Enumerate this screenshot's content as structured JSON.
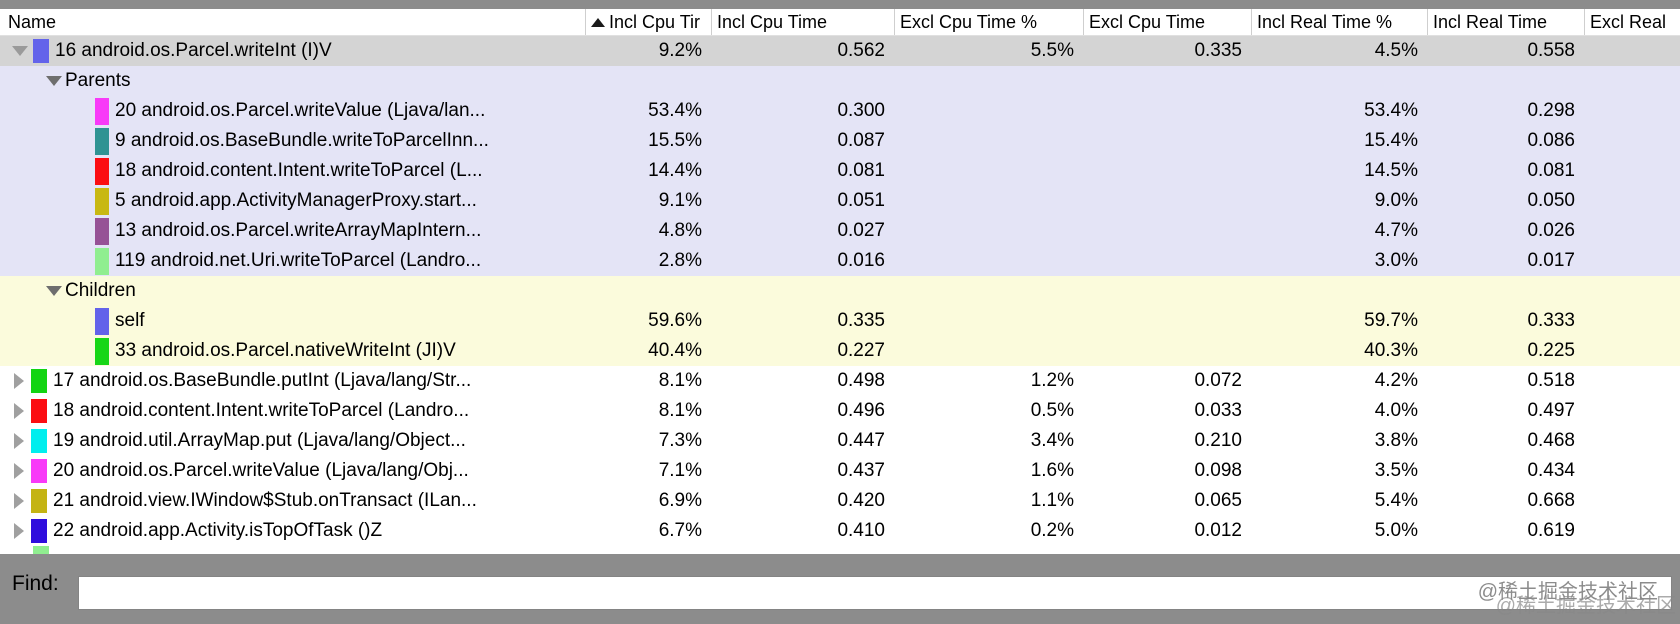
{
  "table": {
    "columns": [
      {
        "label": "Name",
        "sorted": false
      },
      {
        "label": "Incl Cpu Tir",
        "sorted": true
      },
      {
        "label": "Incl Cpu Time",
        "sorted": false
      },
      {
        "label": "Excl Cpu Time %",
        "sorted": false
      },
      {
        "label": "Excl Cpu Time",
        "sorted": false
      },
      {
        "label": "Incl Real Time %",
        "sorted": false
      },
      {
        "label": "Incl Real Time",
        "sorted": false
      },
      {
        "label": "Excl Real",
        "sorted": false
      }
    ],
    "rows": [
      {
        "kind": "root",
        "expanded": true,
        "selected": true,
        "color": "#6363ea",
        "name": "16 android.os.Parcel.writeInt (I)V",
        "values": [
          "9.2%",
          "0.562",
          "5.5%",
          "0.335",
          "4.5%",
          "0.558",
          ""
        ]
      },
      {
        "kind": "section",
        "group": "parents",
        "label": "Parents"
      },
      {
        "kind": "sub",
        "group": "parents",
        "color": "#f83af8",
        "name": "20 android.os.Parcel.writeValue (Ljava/lan...",
        "values": [
          "53.4%",
          "0.300",
          "",
          "",
          "53.4%",
          "0.298",
          ""
        ]
      },
      {
        "kind": "sub",
        "group": "parents",
        "color": "#2f9393",
        "name": "9 android.os.BaseBundle.writeToParcelInn...",
        "values": [
          "15.5%",
          "0.087",
          "",
          "",
          "15.4%",
          "0.086",
          ""
        ]
      },
      {
        "kind": "sub",
        "group": "parents",
        "color": "#fb0d12",
        "name": "18 android.content.Intent.writeToParcel (L...",
        "values": [
          "14.4%",
          "0.081",
          "",
          "",
          "14.5%",
          "0.081",
          ""
        ]
      },
      {
        "kind": "sub",
        "group": "parents",
        "color": "#c8b812",
        "name": "5 android.app.ActivityManagerProxy.start...",
        "values": [
          "9.1%",
          "0.051",
          "",
          "",
          "9.0%",
          "0.050",
          ""
        ]
      },
      {
        "kind": "sub",
        "group": "parents",
        "color": "#965296",
        "name": "13 android.os.Parcel.writeArrayMapIntern...",
        "values": [
          "4.8%",
          "0.027",
          "",
          "",
          "4.7%",
          "0.026",
          ""
        ]
      },
      {
        "kind": "sub",
        "group": "parents",
        "color": "#90ee90",
        "name": "119 android.net.Uri.writeToParcel (Landro...",
        "values": [
          "2.8%",
          "0.016",
          "",
          "",
          "3.0%",
          "0.017",
          ""
        ]
      },
      {
        "kind": "section",
        "group": "children",
        "label": "Children"
      },
      {
        "kind": "sub",
        "group": "children",
        "color": "#6363ea",
        "name": "self",
        "values": [
          "59.6%",
          "0.335",
          "",
          "",
          "59.7%",
          "0.333",
          ""
        ]
      },
      {
        "kind": "sub",
        "group": "children",
        "color": "#17d617",
        "name": "33 android.os.Parcel.nativeWriteInt (JI)V",
        "values": [
          "40.4%",
          "0.227",
          "",
          "",
          "40.3%",
          "0.225",
          ""
        ]
      },
      {
        "kind": "root",
        "expanded": false,
        "selected": false,
        "color": "#12d412",
        "name": "17 android.os.BaseBundle.putInt (Ljava/lang/Str...",
        "values": [
          "8.1%",
          "0.498",
          "1.2%",
          "0.072",
          "4.2%",
          "0.518",
          ""
        ]
      },
      {
        "kind": "root",
        "expanded": false,
        "selected": false,
        "color": "#fb0d12",
        "name": "18 android.content.Intent.writeToParcel (Landro...",
        "values": [
          "8.1%",
          "0.496",
          "0.5%",
          "0.033",
          "4.0%",
          "0.497",
          ""
        ]
      },
      {
        "kind": "root",
        "expanded": false,
        "selected": false,
        "color": "#00eeee",
        "name": "19 android.util.ArrayMap.put (Ljava/lang/Object...",
        "values": [
          "7.3%",
          "0.447",
          "3.4%",
          "0.210",
          "3.8%",
          "0.468",
          ""
        ]
      },
      {
        "kind": "root",
        "expanded": false,
        "selected": false,
        "color": "#f83af8",
        "name": "20 android.os.Parcel.writeValue (Ljava/lang/Obj...",
        "values": [
          "7.1%",
          "0.437",
          "1.6%",
          "0.098",
          "3.5%",
          "0.434",
          ""
        ]
      },
      {
        "kind": "root",
        "expanded": false,
        "selected": false,
        "color": "#c4b414",
        "name": "21 android.view.IWindow$Stub.onTransact (ILan...",
        "values": [
          "6.9%",
          "0.420",
          "1.1%",
          "0.065",
          "5.4%",
          "0.668",
          ""
        ]
      },
      {
        "kind": "root",
        "expanded": false,
        "selected": false,
        "color": "#2f0ddd",
        "name": "22 android.app.Activity.isTopOfTask ()Z",
        "values": [
          "6.7%",
          "0.410",
          "0.2%",
          "0.012",
          "5.0%",
          "0.619",
          ""
        ]
      }
    ],
    "partial_row_color": "#90ee90"
  },
  "find": {
    "label": "Find:",
    "value": ""
  },
  "watermark": {
    "text": "@稀土掘金技术社区"
  },
  "colors": {
    "selection_bg": "#d4d4d4",
    "parents_bg": "#e4e4f6",
    "children_bg": "#fbfbdc",
    "chrome_gray": "#8c8c8c"
  }
}
